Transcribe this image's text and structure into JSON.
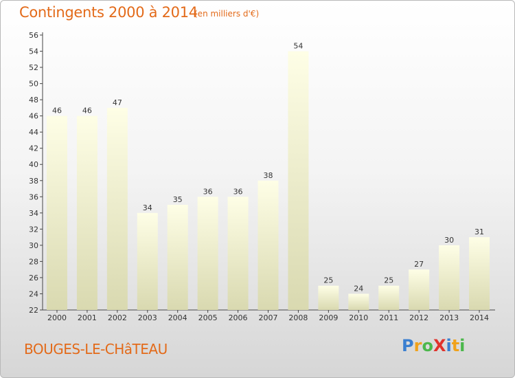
{
  "header": {
    "title": "Contingents 2000 à 2014",
    "subtitle": "(en milliers d'€)"
  },
  "footer": {
    "place": "BOUGES-LE-CHâTEAU",
    "logo_letters": [
      {
        "ch": "P",
        "color": "#3a7fd0"
      },
      {
        "ch": "r",
        "color": "#f0a21b"
      },
      {
        "ch": "o",
        "color": "#4bb74b"
      },
      {
        "ch": "X",
        "color": "#e0322b"
      },
      {
        "ch": "i",
        "color": "#3a7fd0"
      },
      {
        "ch": "t",
        "color": "#f0a21b"
      },
      {
        "ch": "i",
        "color": "#4bb74b"
      }
    ]
  },
  "colors": {
    "accent": "#e36a19",
    "bar_top": "#fefee6",
    "bar_bottom": "#d9d9b0",
    "axis_text": "#333333"
  },
  "chart_data": {
    "type": "bar",
    "title": "Contingents 2000 à 2014",
    "subtitle": "(en milliers d'€)",
    "categories": [
      "2000",
      "2001",
      "2002",
      "2003",
      "2004",
      "2005",
      "2006",
      "2007",
      "2008",
      "2009",
      "2010",
      "2011",
      "2012",
      "2013",
      "2014"
    ],
    "values": [
      46,
      46,
      47,
      34,
      35,
      36,
      36,
      38,
      54,
      25,
      24,
      25,
      27,
      30,
      31
    ],
    "ylim": [
      22,
      56
    ],
    "yticks": [
      22,
      24,
      26,
      28,
      30,
      32,
      34,
      36,
      38,
      40,
      42,
      44,
      46,
      48,
      50,
      52,
      54,
      56
    ],
    "xlabel": "",
    "ylabel": "",
    "grid": false
  }
}
